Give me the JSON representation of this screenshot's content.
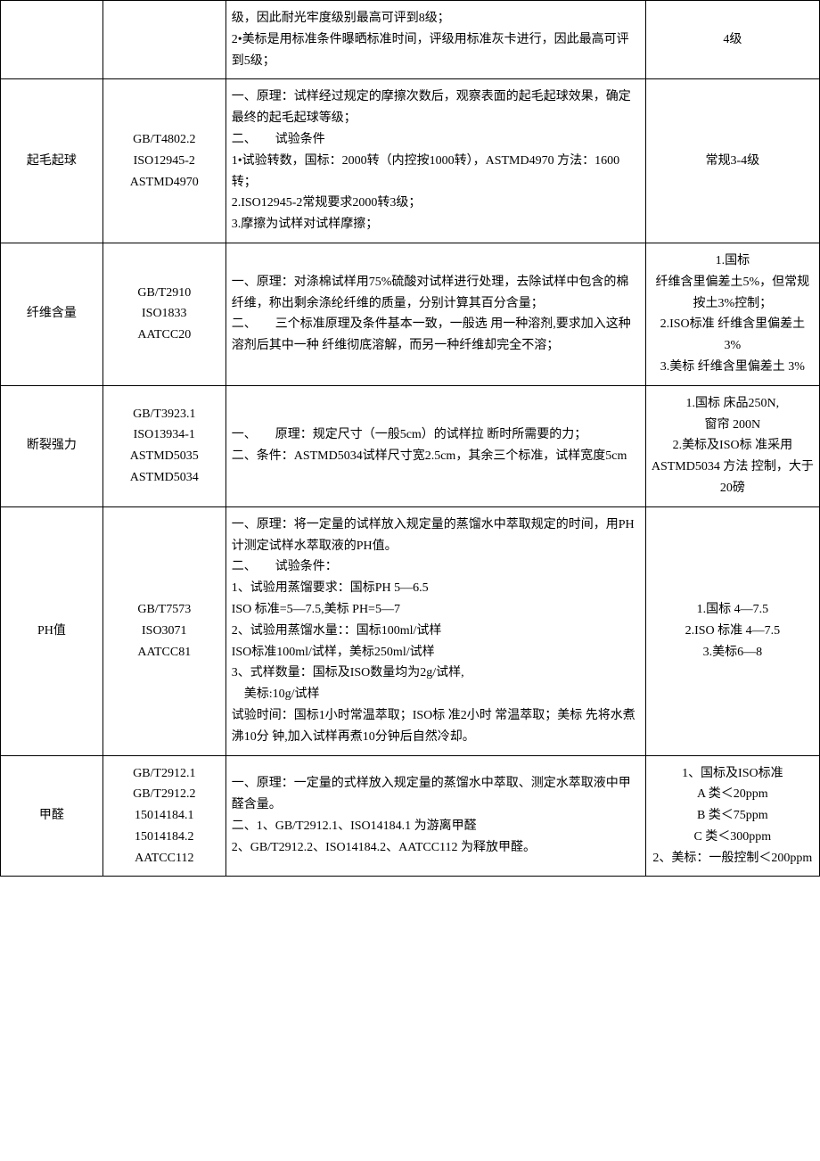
{
  "table": {
    "columns": {
      "col1_width": 100,
      "col2_width": 120,
      "col3_width": 410,
      "col4_width": 170
    },
    "background_color": "#ffffff",
    "border_color": "#000000",
    "text_color": "#000000",
    "font_family": "SimSun",
    "font_size": 14,
    "line_height": 1.7,
    "rows": [
      {
        "c1": "",
        "c2": "",
        "c3": "级，因此耐光牢度级别最高可评到8级；\n2•美标是用标准条件曝晒标准时间，评级用标准灰卡进行，因此最高可评到5级；",
        "c4": "4级"
      },
      {
        "c1": "起毛起球",
        "c2": "GB/T4802.2\nISO12945-2\nASTMD4970",
        "c3": "一、原理：试样经过规定的摩擦次数后，观察表面的起毛起球效果，确定最终的起毛起球等级；\n二、　　试验条件\n1•试验转数，国标：2000转（内控按1000转），ASTMD4970 方法：1600 转；\n2.ISO12945-2常规要求2000转3级；\n3.摩擦为试样对试样摩擦；",
        "c4": "常规3-4级"
      },
      {
        "c1": "纤维含量",
        "c2": "GB/T2910\nISO1833\nAATCC20",
        "c3": "一、原理：对涤棉试样用75%硫酸对试样进行处理，去除试样中包含的棉纤维，称出剩余涤纶纤维的质量，分别计算其百分含量；\n二、　　三个标准原理及条件基本一致，一般选 用一种溶剂,要求加入这种溶剂后其中一种 纤维彻底溶解，而另一种纤维却完全不溶；",
        "c4": "1.国标\n纤维含里偏差土5%，但常规按土3%控制；\n2.ISO标准 纤维含里偏差土 3%\n3.美标 纤维含里偏差土 3%"
      },
      {
        "c1": "断裂强力",
        "c2": "GB/T3923.1\nISO13934-1\nASTMD5035\nASTMD5034",
        "c3": "一、　　原理：规定尺寸（一般5cm）的试样拉 断时所需要的力；\n二、条件：ASTMD5034试样尺寸宽2.5cm，其余三个标准，试样宽度5cm",
        "c4": "1.国标 床品250N,\n窗帘 200N\n2.美标及ISO标 准采用 ASTMD5034 方法 控制，大于 20磅"
      },
      {
        "c1": "PH值",
        "c2": "GB/T7573\nISO3071\nAATCC81",
        "c3": "一、原理：将一定量的试样放入规定量的蒸馏水中萃取规定的时间，用PH计测定试样水萃取液的PH值。\n二、　　试验条件：\n1、试验用蒸馏要求：国标PH 5—6.5\nISO 标准=5—7.5,美标 PH=5—7\n2、试验用蒸馏水量：：国标100ml/试样\nISO标准100ml/试样，美标250ml/试样\n3、式样数量：国标及ISO数量均为2g/试样,\n　美标:10g/试样\n试验时间：国标1小时常温萃取；ISO标 准2小时 常温萃取；美标 先将水煮沸10分 钟,加入试样再煮10分钟后自然冷却。",
        "c4": "1.国标 4—7.5\n2.ISO 标准 4—7.5\n3.美标6—8"
      },
      {
        "c1": "甲醛",
        "c2": "GB/T2912.1\nGB/T2912.2\n15014184.1\n15014184.2\nAATCC112",
        "c3": "一、原理：一定量的式样放入规定量的蒸馏水中萃取、测定水萃取液中甲醛含量。\n二、1、GB/T2912.1、ISO14184.1 为游离甲醛\n2、GB/T2912.2、ISO14184.2、AATCC112 为释放甲醛。",
        "c4": "1、国标及ISO标准\nA 类＜20ppm\nB 类＜75ppm\nC 类＜300ppm\n2、美标：一般控制＜200ppm"
      }
    ]
  }
}
